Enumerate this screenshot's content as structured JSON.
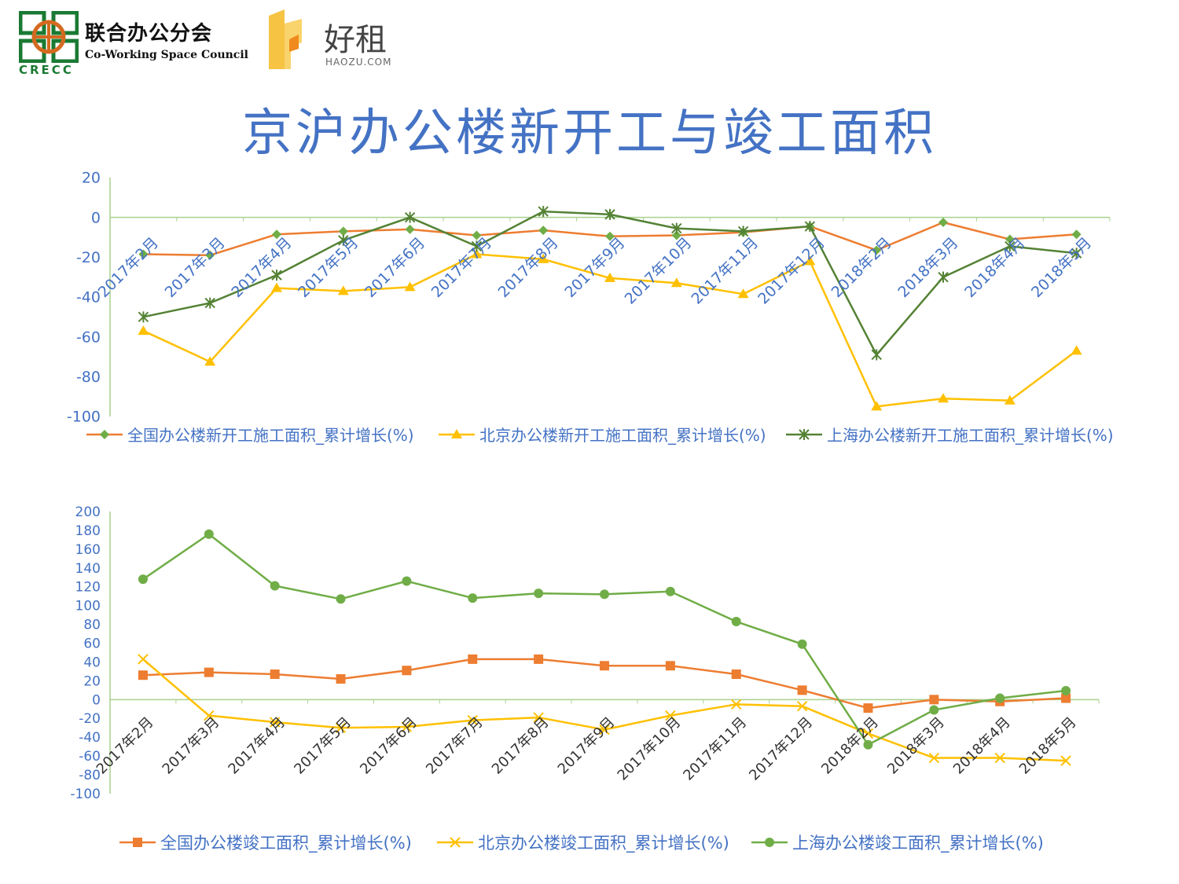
{
  "logos": {
    "council_cn": "联合办公分会",
    "council_en": "Co-Working Space Council",
    "council_abbr": "CRECC",
    "haozu_cn": "好租",
    "haozu_en": "HAOZU.COM"
  },
  "title": "京沪办公楼新开工与竣工面积",
  "colors": {
    "orange": "#ed7d31",
    "yellow": "#ffc000",
    "dark_green": "#548235",
    "light_green": "#70ad47",
    "axis_text": "#4472c4",
    "axis_line": "#a9d18e",
    "title": "#4472c4"
  },
  "chart_data": [
    {
      "type": "line",
      "categories": [
        "2017年2月",
        "2017年3月",
        "2017年4月",
        "2017年5月",
        "2017年6月",
        "2017年7月",
        "2017年8月",
        "2017年9月",
        "2017年10月",
        "2017年11月",
        "2017年12月",
        "2018年2月",
        "2018年3月",
        "2018年4月",
        "2018年5月"
      ],
      "ylim": [
        -100,
        20
      ],
      "yticks": [
        20,
        0,
        -20,
        -40,
        -60,
        -80,
        -100
      ],
      "series": [
        {
          "name": "全国办公楼新开工施工面积_累计增长(%)",
          "color": "#ed7d31",
          "marker": "diamond",
          "marker_color": "#70ad47",
          "values": [
            -18.5,
            -19,
            -8.5,
            -7,
            -6,
            -9,
            -6.5,
            -9.5,
            -9,
            -7.5,
            -4.5,
            -16.5,
            -2.5,
            -11,
            -8.5
          ]
        },
        {
          "name": "北京办公楼新开工施工面积_累计增长(%)",
          "color": "#ffc000",
          "marker": "triangle",
          "marker_color": "#ffc000",
          "values": [
            -57,
            -72.5,
            -35.5,
            -37,
            -35,
            -18.5,
            -21,
            -30.5,
            -33,
            -38.5,
            -22,
            -95,
            -91,
            -92,
            -67
          ]
        },
        {
          "name": "上海办公楼新开工施工面积_累计增长(%)",
          "color": "#548235",
          "marker": "star",
          "marker_color": "#548235",
          "values": [
            -50,
            -43,
            -29,
            -11.5,
            0,
            -14.5,
            3,
            1.5,
            -5.5,
            -7,
            -4.5,
            -69,
            -30,
            -14.5,
            -18
          ]
        }
      ]
    },
    {
      "type": "line",
      "categories": [
        "2017年2月",
        "2017年3月",
        "2017年4月",
        "2017年5月",
        "2017年6月",
        "2017年7月",
        "2017年8月",
        "2017年9月",
        "2017年10月",
        "2017年11月",
        "2017年12月",
        "2018年2月",
        "2018年3月",
        "2018年4月",
        "2018年5月"
      ],
      "ylim": [
        -100,
        200
      ],
      "yticks": [
        200,
        180,
        160,
        140,
        120,
        100,
        80,
        60,
        40,
        20,
        0,
        -20,
        -40,
        -60,
        -80,
        -100
      ],
      "series": [
        {
          "name": "全国办公楼竣工面积_累计增长(%)",
          "color": "#ed7d31",
          "marker": "square",
          "marker_color": "#ed7d31",
          "values": [
            26,
            29,
            27,
            22,
            31,
            43,
            43,
            36,
            36,
            27,
            10,
            -9,
            0,
            -2,
            1.5
          ]
        },
        {
          "name": "北京办公楼竣工面积_累计增长(%)",
          "color": "#ffc000",
          "marker": "x",
          "marker_color": "#ffc000",
          "values": [
            43,
            -17,
            -24,
            -30,
            -29,
            -22,
            -19,
            -32,
            -17,
            -5,
            -7,
            -36,
            -62,
            -62,
            -65
          ]
        },
        {
          "name": "上海办公楼竣工面积_累计增长(%)",
          "color": "#70ad47",
          "marker": "circle",
          "marker_color": "#70ad47",
          "values": [
            128,
            176,
            121,
            107,
            126,
            108,
            113,
            112,
            115,
            83,
            59,
            -48,
            -11,
            1.5,
            9.5
          ]
        }
      ]
    }
  ]
}
